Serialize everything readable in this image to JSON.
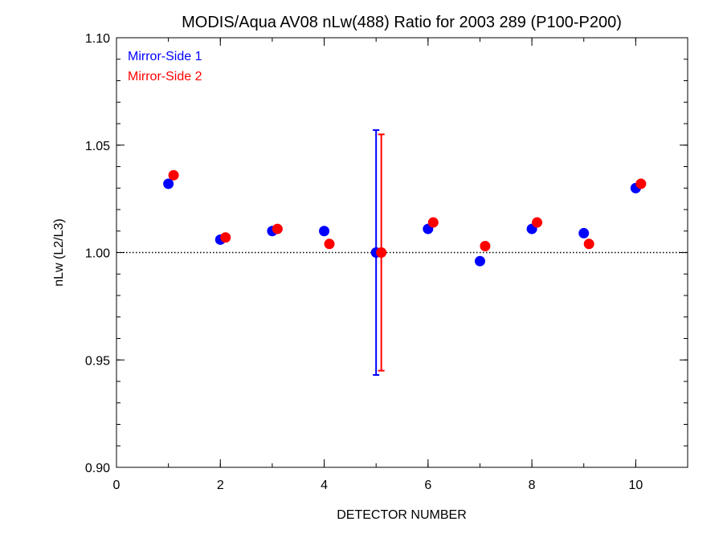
{
  "chart_data": {
    "type": "scatter",
    "title": "MODIS/Aqua AV08 nLw(488) Ratio for 2003 289 (P100-P200)",
    "xlabel": "DETECTOR NUMBER",
    "ylabel": "nLw (L2/L3)",
    "xlim": [
      0,
      11
    ],
    "ylim": [
      0.9,
      1.1
    ],
    "x_ticks": [
      0,
      2,
      4,
      6,
      8,
      10
    ],
    "x_tick_labels": [
      "0",
      "2",
      "4",
      "6",
      "8",
      "10"
    ],
    "x_minor_step": 1,
    "y_ticks": [
      0.9,
      0.95,
      1.0,
      1.05,
      1.1
    ],
    "y_tick_labels": [
      "0.90",
      "0.95",
      "1.00",
      "1.05",
      "1.10"
    ],
    "y_minor_step": 0.01,
    "reference_line": 1.0,
    "legend_position": "top-left",
    "series": [
      {
        "name": "Mirror-Side 1",
        "color": "#0000ff",
        "x": [
          1,
          2,
          3,
          4,
          5,
          6,
          7,
          8,
          9,
          10
        ],
        "y": [
          1.032,
          1.006,
          1.01,
          1.01,
          1.0,
          1.011,
          0.996,
          1.011,
          1.009,
          1.03
        ],
        "error_bar": {
          "x": 5,
          "low": 0.943,
          "high": 1.057
        }
      },
      {
        "name": "Mirror-Side 2",
        "color": "#ff0000",
        "x": [
          1.1,
          2.1,
          3.1,
          4.1,
          5.1,
          6.1,
          7.1,
          8.1,
          9.1,
          10.1
        ],
        "y": [
          1.036,
          1.007,
          1.011,
          1.004,
          1.0,
          1.014,
          1.003,
          1.014,
          1.004,
          1.032
        ],
        "error_bar": {
          "x": 5.1,
          "low": 0.945,
          "high": 1.055
        }
      }
    ]
  }
}
